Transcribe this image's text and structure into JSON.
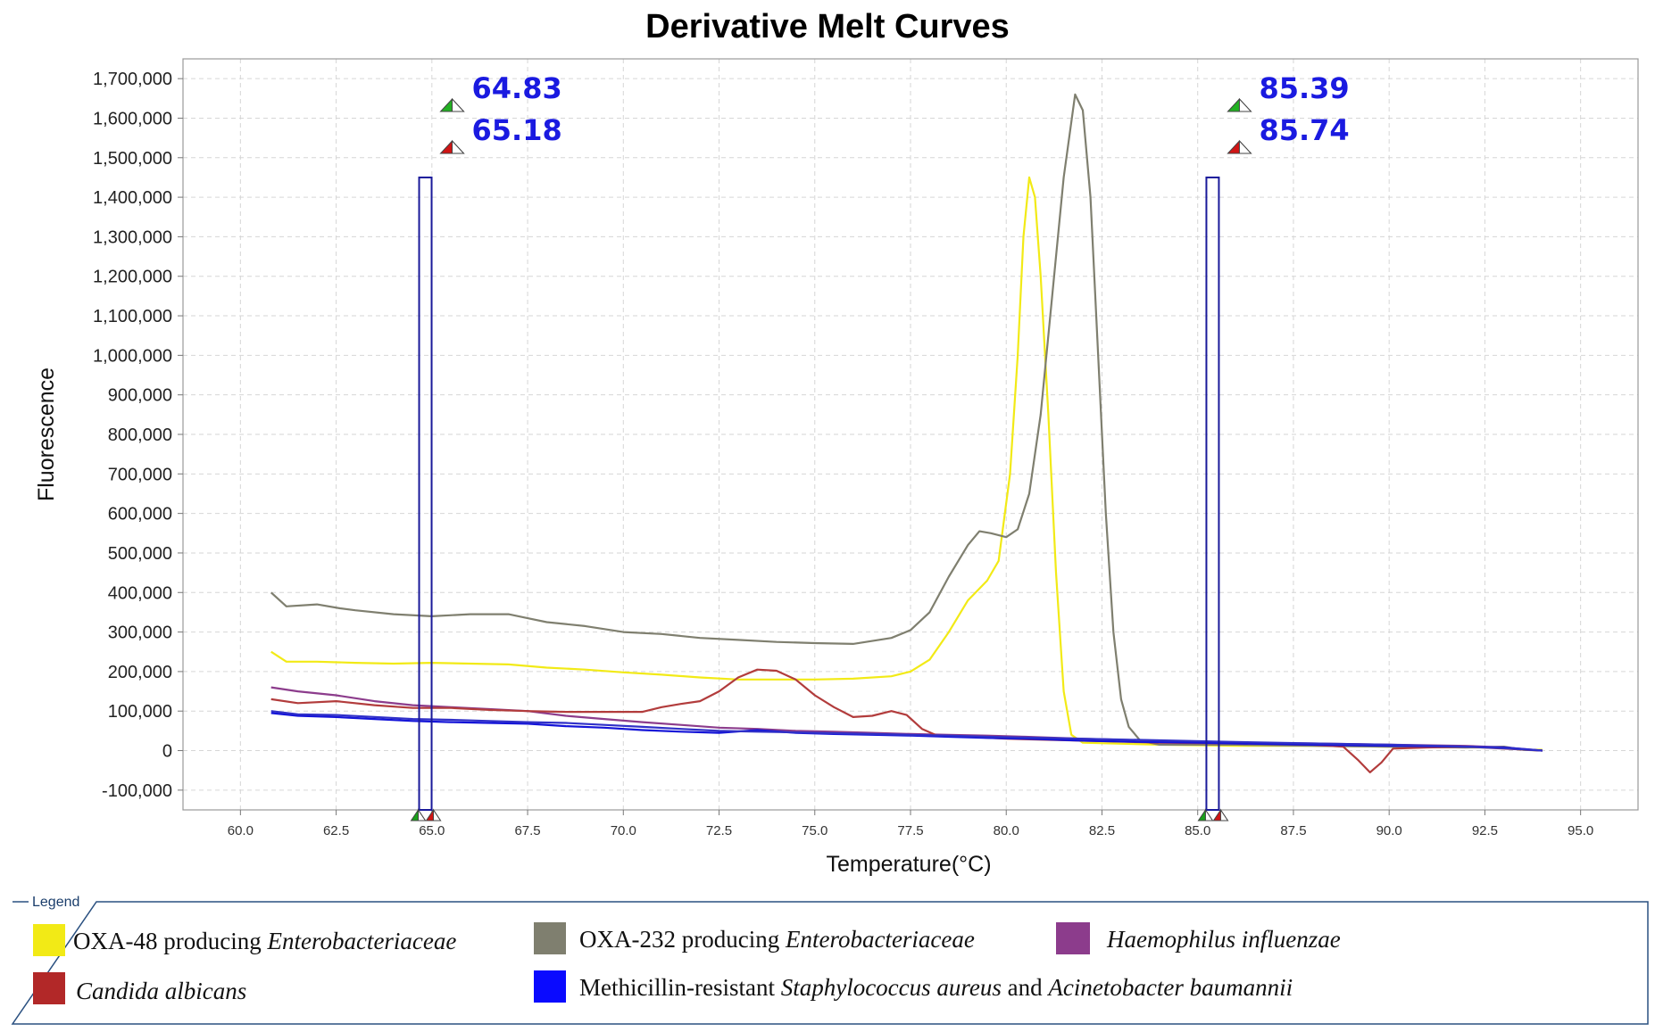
{
  "chart_data": {
    "type": "line",
    "title": "Derivative Melt Curves",
    "xlabel": "Temperature(°C)",
    "ylabel": "Fluorescence",
    "xlim": [
      58.5,
      96.5
    ],
    "ylim": [
      -150000,
      1750000
    ],
    "x_ticks": [
      "60.0",
      "62.5",
      "65.0",
      "67.5",
      "70.0",
      "72.5",
      "75.0",
      "77.5",
      "80.0",
      "82.5",
      "85.0",
      "87.5",
      "90.0",
      "92.5",
      "95.0"
    ],
    "y_ticks": [
      "1,700,000",
      "1,600,000",
      "1,500,000",
      "1,400,000",
      "1,300,000",
      "1,200,000",
      "1,100,000",
      "1,000,000",
      "900,000",
      "800,000",
      "700,000",
      "600,000",
      "500,000",
      "400,000",
      "300,000",
      "200,000",
      "100,000",
      "0",
      "-100,000"
    ],
    "grid": true,
    "markers": [
      {
        "name": "left",
        "green": "64.83",
        "red": "65.18",
        "x": 64.83,
        "top": 1450000
      },
      {
        "name": "right",
        "green": "85.39",
        "red": "85.74",
        "x": 85.39,
        "top": 1450000
      }
    ],
    "series": [
      {
        "name": "OXA-48 producing Enterobacteriaceae",
        "color": "#f2ea16",
        "points": [
          [
            60.8,
            250000
          ],
          [
            61.2,
            225000
          ],
          [
            62,
            225000
          ],
          [
            63,
            222000
          ],
          [
            64,
            220000
          ],
          [
            65,
            222000
          ],
          [
            66,
            220000
          ],
          [
            67,
            218000
          ],
          [
            68,
            210000
          ],
          [
            69,
            205000
          ],
          [
            70,
            198000
          ],
          [
            71,
            192000
          ],
          [
            72,
            185000
          ],
          [
            73,
            180000
          ],
          [
            74,
            180000
          ],
          [
            75,
            180000
          ],
          [
            76,
            182000
          ],
          [
            77,
            188000
          ],
          [
            77.5,
            200000
          ],
          [
            78,
            230000
          ],
          [
            78.5,
            300000
          ],
          [
            79,
            380000
          ],
          [
            79.5,
            430000
          ],
          [
            79.8,
            480000
          ],
          [
            80.1,
            700000
          ],
          [
            80.3,
            1000000
          ],
          [
            80.45,
            1300000
          ],
          [
            80.6,
            1450000
          ],
          [
            80.75,
            1400000
          ],
          [
            80.9,
            1200000
          ],
          [
            81.1,
            850000
          ],
          [
            81.3,
            450000
          ],
          [
            81.5,
            150000
          ],
          [
            81.7,
            40000
          ],
          [
            82,
            20000
          ],
          [
            84,
            15000
          ],
          [
            86,
            12000
          ],
          [
            88,
            12000
          ],
          [
            90,
            10000
          ],
          [
            92,
            8000
          ],
          [
            93,
            8000
          ],
          [
            93.5,
            2000
          ],
          [
            94,
            2000
          ]
        ]
      },
      {
        "name": "OXA-232 producing Enterobacteriaceae",
        "color": "#7f7f6f",
        "points": [
          [
            60.8,
            400000
          ],
          [
            61.2,
            365000
          ],
          [
            62,
            370000
          ],
          [
            62.6,
            360000
          ],
          [
            63,
            355000
          ],
          [
            64,
            345000
          ],
          [
            65,
            340000
          ],
          [
            66,
            345000
          ],
          [
            67,
            345000
          ],
          [
            67.5,
            335000
          ],
          [
            68,
            325000
          ],
          [
            69,
            315000
          ],
          [
            70,
            300000
          ],
          [
            71,
            295000
          ],
          [
            72,
            285000
          ],
          [
            73,
            280000
          ],
          [
            74,
            275000
          ],
          [
            75,
            272000
          ],
          [
            76,
            270000
          ],
          [
            77,
            285000
          ],
          [
            77.5,
            305000
          ],
          [
            78,
            350000
          ],
          [
            78.5,
            440000
          ],
          [
            79,
            520000
          ],
          [
            79.3,
            555000
          ],
          [
            79.6,
            550000
          ],
          [
            80,
            540000
          ],
          [
            80.3,
            560000
          ],
          [
            80.6,
            650000
          ],
          [
            80.9,
            850000
          ],
          [
            81.2,
            1150000
          ],
          [
            81.5,
            1450000
          ],
          [
            81.8,
            1660000
          ],
          [
            82,
            1620000
          ],
          [
            82.2,
            1400000
          ],
          [
            82.4,
            1000000
          ],
          [
            82.6,
            600000
          ],
          [
            82.8,
            300000
          ],
          [
            83,
            130000
          ],
          [
            83.2,
            60000
          ],
          [
            83.5,
            25000
          ],
          [
            84,
            15000
          ],
          [
            86,
            15000
          ],
          [
            88,
            12000
          ],
          [
            90,
            10000
          ],
          [
            92,
            8000
          ],
          [
            93,
            10000
          ],
          [
            93.5,
            2000
          ],
          [
            94,
            0
          ]
        ]
      },
      {
        "name": "Haemophilus influenzae",
        "color": "#8c3c8c",
        "points": [
          [
            60.8,
            160000
          ],
          [
            61.5,
            150000
          ],
          [
            62.5,
            140000
          ],
          [
            63.5,
            125000
          ],
          [
            64.5,
            115000
          ],
          [
            65.5,
            110000
          ],
          [
            66.5,
            105000
          ],
          [
            67.5,
            100000
          ],
          [
            68.5,
            88000
          ],
          [
            69.5,
            80000
          ],
          [
            70.5,
            72000
          ],
          [
            71.5,
            65000
          ],
          [
            72.5,
            58000
          ],
          [
            73.5,
            55000
          ],
          [
            74.5,
            50000
          ],
          [
            75.5,
            48000
          ],
          [
            76.5,
            45000
          ],
          [
            77.5,
            42000
          ],
          [
            78.5,
            40000
          ],
          [
            79.5,
            38000
          ],
          [
            80.5,
            35000
          ],
          [
            82,
            30000
          ],
          [
            84,
            25000
          ],
          [
            86,
            20000
          ],
          [
            88,
            18000
          ],
          [
            90,
            15000
          ],
          [
            92,
            12000
          ],
          [
            93,
            8000
          ],
          [
            94,
            0
          ]
        ]
      },
      {
        "name": "Candida albicans",
        "color": "#b23c3c",
        "points": [
          [
            60.8,
            130000
          ],
          [
            61.5,
            120000
          ],
          [
            62.5,
            125000
          ],
          [
            63.5,
            115000
          ],
          [
            64.5,
            108000
          ],
          [
            65.5,
            108000
          ],
          [
            66.5,
            103000
          ],
          [
            67.5,
            100000
          ],
          [
            68.5,
            98000
          ],
          [
            69.5,
            98000
          ],
          [
            70.5,
            98000
          ],
          [
            71,
            110000
          ],
          [
            71.5,
            118000
          ],
          [
            72,
            125000
          ],
          [
            72.5,
            150000
          ],
          [
            73,
            185000
          ],
          [
            73.5,
            205000
          ],
          [
            74,
            202000
          ],
          [
            74.5,
            180000
          ],
          [
            75,
            140000
          ],
          [
            75.5,
            110000
          ],
          [
            76,
            85000
          ],
          [
            76.5,
            88000
          ],
          [
            77,
            100000
          ],
          [
            77.4,
            90000
          ],
          [
            77.8,
            55000
          ],
          [
            78.2,
            38000
          ],
          [
            79,
            35000
          ],
          [
            80,
            30000
          ],
          [
            82,
            25000
          ],
          [
            84,
            20000
          ],
          [
            86,
            18000
          ],
          [
            88,
            15000
          ],
          [
            88.8,
            10000
          ],
          [
            89.2,
            -25000
          ],
          [
            89.5,
            -55000
          ],
          [
            89.8,
            -30000
          ],
          [
            90.1,
            5000
          ],
          [
            91,
            8000
          ],
          [
            92,
            10000
          ],
          [
            93,
            5000
          ],
          [
            94,
            0
          ]
        ]
      },
      {
        "name": "Methicillin-resistant Staphylococcus aureus and Acinetobacter baumannii",
        "color": "#1414d8",
        "points": [
          [
            60.8,
            95000
          ],
          [
            61.5,
            88000
          ],
          [
            62.5,
            85000
          ],
          [
            63.5,
            80000
          ],
          [
            64.5,
            75000
          ],
          [
            65.5,
            72000
          ],
          [
            66.5,
            70000
          ],
          [
            67.5,
            68000
          ],
          [
            68.5,
            62000
          ],
          [
            69.5,
            58000
          ],
          [
            70.5,
            52000
          ],
          [
            71.5,
            48000
          ],
          [
            72.5,
            45000
          ],
          [
            73.5,
            52000
          ],
          [
            74.5,
            45000
          ],
          [
            75.5,
            42000
          ],
          [
            76.5,
            40000
          ],
          [
            77.5,
            38000
          ],
          [
            78.5,
            35000
          ],
          [
            79.5,
            32000
          ],
          [
            80.5,
            30000
          ],
          [
            82,
            25000
          ],
          [
            83.5,
            22000
          ],
          [
            85,
            20000
          ],
          [
            86,
            18000
          ],
          [
            88,
            15000
          ],
          [
            90,
            12000
          ],
          [
            92,
            10000
          ],
          [
            93,
            8000
          ],
          [
            94,
            0
          ]
        ]
      },
      {
        "name": "Methicillin-resistant Staphylococcus aureus and Acinetobacter baumannii (2)",
        "color": "#3030c8",
        "points": [
          [
            60.8,
            100000
          ],
          [
            61.5,
            92000
          ],
          [
            62.5,
            90000
          ],
          [
            63.5,
            85000
          ],
          [
            64.5,
            80000
          ],
          [
            65.5,
            78000
          ],
          [
            66.5,
            75000
          ],
          [
            67.5,
            72000
          ],
          [
            68.5,
            70000
          ],
          [
            69.5,
            65000
          ],
          [
            70.5,
            60000
          ],
          [
            71.5,
            55000
          ],
          [
            72.5,
            50000
          ],
          [
            73.5,
            48000
          ],
          [
            74.5,
            46000
          ],
          [
            75.5,
            44000
          ],
          [
            76.5,
            42000
          ],
          [
            77.5,
            40000
          ],
          [
            78.5,
            38000
          ],
          [
            79.5,
            35000
          ],
          [
            80.5,
            33000
          ],
          [
            82,
            30000
          ],
          [
            84,
            26000
          ],
          [
            86,
            22000
          ],
          [
            88,
            18000
          ],
          [
            90,
            15000
          ],
          [
            92,
            10000
          ],
          [
            93,
            6000
          ],
          [
            94,
            0
          ]
        ]
      }
    ]
  },
  "legend": {
    "title": "Legend",
    "items": [
      {
        "color": "#f2ea16",
        "prefix": "OXA-48 producing ",
        "italic": "Enterobacteriaceae",
        "mid": "",
        "italic2": ""
      },
      {
        "color": "#7f7f6f",
        "prefix": "OXA-232 producing ",
        "italic": "Enterobacteriaceae",
        "mid": "",
        "italic2": ""
      },
      {
        "color": "#8c3c8c",
        "prefix": "",
        "italic": "Haemophilus influenzae",
        "mid": "",
        "italic2": ""
      },
      {
        "color": "#b22828",
        "prefix": "",
        "italic": "Candida albicans",
        "mid": "",
        "italic2": ""
      },
      {
        "color": "#0a0aff",
        "prefix": "Methicillin-resistant ",
        "italic": "Staphylococcus aureus",
        "mid": " and ",
        "italic2": "Acinetobacter baumannii"
      }
    ]
  }
}
